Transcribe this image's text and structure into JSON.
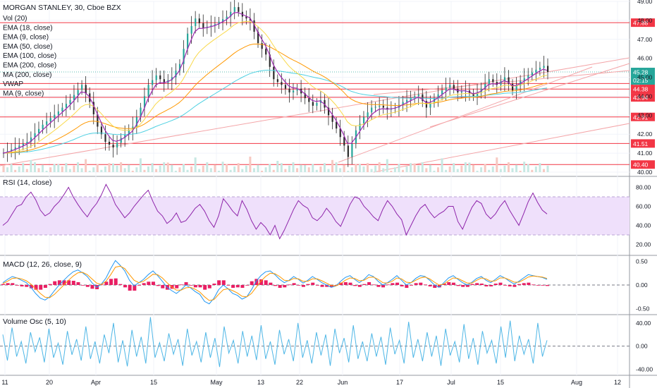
{
  "chart_data": {
    "type": "candlestick",
    "symbol_title": "MORGAN STANLEY, 30, Cboe BZX",
    "price_pane": {
      "indicators": [
        "Vol (20)",
        "EMA (18, close)",
        "EMA (9, close)",
        "EMA (50, close)",
        "EMA (100, close)",
        "EMA (200, close)",
        "MA (200, close)",
        "VWAP",
        "MA (9, close)"
      ],
      "ylim": [
        40,
        49
      ],
      "ticks": [
        "40.00",
        "41.00",
        "42.00",
        "43.00",
        "44.00",
        "45.00",
        "46.00",
        "47.00",
        "48.00",
        "49.00"
      ],
      "price_close_path": [
        [
          0,
          41.0
        ],
        [
          6,
          41.6
        ],
        [
          10,
          42.5
        ],
        [
          14,
          43.2
        ],
        [
          17,
          43.8
        ],
        [
          20,
          44.6
        ],
        [
          22,
          43.7
        ],
        [
          24,
          42.4
        ],
        [
          26,
          41.6
        ],
        [
          28,
          41.3
        ],
        [
          30,
          41.8
        ],
        [
          33,
          42.4
        ],
        [
          35,
          43.4
        ],
        [
          37,
          44.6
        ],
        [
          39,
          45.1
        ],
        [
          41,
          44.7
        ],
        [
          43,
          45.0
        ],
        [
          45,
          45.7
        ],
        [
          47,
          47.3
        ],
        [
          49,
          48.1
        ],
        [
          51,
          47.6
        ],
        [
          54,
          47.8
        ],
        [
          57,
          48.2
        ],
        [
          59,
          48.7
        ],
        [
          61,
          48.2
        ],
        [
          63,
          48.0
        ],
        [
          65,
          46.8
        ],
        [
          67,
          46.2
        ],
        [
          69,
          44.9
        ],
        [
          71,
          44.6
        ],
        [
          73,
          44.2
        ],
        [
          75,
          44.4
        ],
        [
          77,
          43.9
        ],
        [
          79,
          43.5
        ],
        [
          81,
          43.8
        ],
        [
          83,
          43.0
        ],
        [
          85,
          42.3
        ],
        [
          87,
          41.4
        ],
        [
          88,
          40.8
        ],
        [
          90,
          42.2
        ],
        [
          92,
          42.9
        ],
        [
          94,
          43.4
        ],
        [
          96,
          43.5
        ],
        [
          98,
          43.3
        ],
        [
          100,
          43.4
        ],
        [
          102,
          43.7
        ],
        [
          104,
          43.9
        ],
        [
          106,
          44.1
        ],
        [
          108,
          43.4
        ],
        [
          110,
          43.9
        ],
        [
          112,
          44.3
        ],
        [
          114,
          44.6
        ],
        [
          116,
          44.2
        ],
        [
          118,
          44.3
        ],
        [
          120,
          44.0
        ],
        [
          122,
          44.4
        ],
        [
          124,
          44.9
        ],
        [
          126,
          44.6
        ],
        [
          128,
          45.0
        ],
        [
          130,
          44.3
        ],
        [
          132,
          44.8
        ],
        [
          134,
          45.1
        ],
        [
          136,
          45.4
        ],
        [
          138,
          45.6
        ],
        [
          139,
          45.28
        ]
      ],
      "horizontal_levels": [
        {
          "label": "47.88",
          "value": 47.88
        },
        {
          "label": "44.67",
          "value": 44.67
        },
        {
          "label": "44.38",
          "value": 44.38
        },
        {
          "label": "43.94",
          "value": 43.94
        },
        {
          "label": "42.91",
          "value": 42.91
        },
        {
          "label": "41.51",
          "value": 41.51
        },
        {
          "label": "40.40",
          "value": 40.4
        }
      ],
      "last_price": {
        "label": "45.28",
        "countdown": "02:15",
        "value": 45.28
      }
    },
    "rsi_pane": {
      "title": "RSI (14, close)",
      "ylim": [
        10,
        90
      ],
      "ticks": [
        "80.00",
        "60.00",
        "40.00",
        "20.00"
      ],
      "band": [
        30,
        70
      ],
      "values": [
        40,
        44,
        52,
        60,
        62,
        70,
        75,
        67,
        56,
        50,
        53,
        60,
        65,
        72,
        80,
        70,
        62,
        55,
        49,
        57,
        63,
        72,
        83,
        74,
        62,
        55,
        48,
        53,
        60,
        66,
        72,
        77,
        65,
        55,
        50,
        42,
        46,
        53,
        43,
        45,
        51,
        58,
        62,
        55,
        45,
        38,
        50,
        68,
        62,
        55,
        50,
        66,
        57,
        45,
        36,
        43,
        38,
        30,
        40,
        26,
        35,
        46,
        57,
        66,
        61,
        58,
        48,
        45,
        50,
        58,
        52,
        44,
        39,
        50,
        62,
        70,
        68,
        60,
        55,
        49,
        45,
        57,
        66,
        60,
        52,
        46,
        30,
        40,
        50,
        58,
        62,
        54,
        48,
        52,
        55,
        60,
        60,
        44,
        36,
        48,
        59,
        66,
        63,
        52,
        47,
        52,
        60,
        66,
        56,
        48,
        40,
        52,
        65,
        74,
        64,
        56,
        52
      ]
    },
    "macd_pane": {
      "title": "MACD (12, 26, close, 9)",
      "ylim": [
        -0.6,
        0.6
      ],
      "ticks": [
        "0.50",
        "0.00",
        "-0.50"
      ],
      "macd": [
        0.05,
        0.12,
        0.18,
        0.15,
        0.1,
        0.05,
        -0.05,
        -0.18,
        -0.28,
        -0.32,
        -0.25,
        -0.12,
        0.0,
        0.1,
        0.2,
        0.28,
        0.32,
        0.26,
        0.18,
        0.05,
        -0.05,
        0.02,
        0.15,
        0.35,
        0.52,
        0.42,
        0.3,
        0.1,
        -0.02,
        0.05,
        0.12,
        0.22,
        0.3,
        0.2,
        0.08,
        -0.05,
        -0.12,
        -0.18,
        -0.1,
        0.0,
        -0.06,
        -0.14,
        -0.2,
        -0.35,
        -0.4,
        -0.28,
        -0.1,
        0.0,
        -0.08,
        -0.18,
        -0.22,
        -0.3,
        -0.25,
        -0.1,
        0.08,
        0.2,
        0.28,
        0.3,
        0.22,
        0.12,
        0.05,
        0.1,
        0.18,
        0.12,
        0.04,
        0.1,
        0.18,
        0.12,
        0.05,
        0.0,
        -0.05,
        -0.02,
        0.08,
        0.16,
        0.2,
        0.12,
        0.05,
        0.12,
        0.22,
        0.18,
        0.08,
        0.0,
        0.05,
        0.12,
        0.2,
        0.1,
        0.0,
        0.05,
        0.14,
        0.2,
        0.18,
        0.1,
        0.0,
        -0.05,
        0.05,
        0.15,
        0.2,
        0.12,
        0.05,
        0.0,
        0.06,
        0.14,
        0.18,
        0.1,
        0.05,
        0.12,
        0.2,
        0.15,
        0.08,
        0.02,
        0.08,
        0.15,
        0.22,
        0.2,
        0.18,
        0.16,
        0.12
      ],
      "signal": [
        0.03,
        0.08,
        0.14,
        0.15,
        0.13,
        0.09,
        0.02,
        -0.08,
        -0.18,
        -0.26,
        -0.27,
        -0.2,
        -0.1,
        0.0,
        0.1,
        0.19,
        0.26,
        0.27,
        0.22,
        0.13,
        0.04,
        0.01,
        0.08,
        0.22,
        0.38,
        0.4,
        0.35,
        0.22,
        0.1,
        0.05,
        0.08,
        0.15,
        0.23,
        0.22,
        0.15,
        0.05,
        -0.04,
        -0.11,
        -0.11,
        -0.06,
        -0.05,
        -0.09,
        -0.15,
        -0.25,
        -0.33,
        -0.31,
        -0.2,
        -0.1,
        -0.08,
        -0.12,
        -0.17,
        -0.24,
        -0.25,
        -0.18,
        -0.05,
        0.08,
        0.18,
        0.25,
        0.24,
        0.18,
        0.1,
        0.09,
        0.14,
        0.13,
        0.08,
        0.08,
        0.13,
        0.13,
        0.09,
        0.04,
        -0.01,
        -0.02,
        0.03,
        0.1,
        0.15,
        0.14,
        0.09,
        0.1,
        0.16,
        0.17,
        0.12,
        0.05,
        0.04,
        0.08,
        0.15,
        0.13,
        0.06,
        0.05,
        0.1,
        0.15,
        0.17,
        0.13,
        0.06,
        0.0,
        0.02,
        0.09,
        0.15,
        0.14,
        0.09,
        0.04,
        0.04,
        0.1,
        0.15,
        0.13,
        0.08,
        0.09,
        0.15,
        0.15,
        0.11,
        0.06,
        0.06,
        0.11,
        0.17,
        0.19,
        0.18,
        0.17,
        0.14
      ]
    },
    "vol_osc_pane": {
      "title": "Volume Osc (5, 10)",
      "ylim": [
        -48,
        52
      ],
      "ticks": [
        "40.00",
        "0.00",
        "-40.00"
      ],
      "values": [
        20,
        -25,
        32,
        -18,
        8,
        -30,
        24,
        -10,
        15,
        -28,
        30,
        -20,
        5,
        -32,
        26,
        -15,
        12,
        -25,
        34,
        -22,
        8,
        -30,
        20,
        -12,
        40,
        -28,
        10,
        -35,
        28,
        -18,
        16,
        -30,
        50,
        -20,
        6,
        -26,
        22,
        -14,
        12,
        -34,
        30,
        -16,
        8,
        -28,
        24,
        -20,
        14,
        -36,
        34,
        -12,
        10,
        -30,
        26,
        -18,
        18,
        -24,
        36,
        -22,
        8,
        -32,
        28,
        -14,
        12,
        -26,
        40,
        -20,
        10,
        -30,
        24,
        -16,
        20,
        -34,
        30,
        -12,
        14,
        -28,
        36,
        -22,
        8,
        -26,
        22,
        -18,
        16,
        -32,
        32,
        -14,
        10,
        -30,
        42,
        -20,
        12,
        -26,
        24,
        -18,
        18,
        -34,
        30,
        -16,
        8,
        -28,
        38,
        -22,
        14,
        -32,
        26,
        -12,
        10,
        -30,
        34,
        -20,
        44,
        -26,
        18,
        -14,
        12,
        -30,
        40,
        -18,
        10
      ]
    },
    "x_ticks": [
      "11",
      "20",
      "Apr",
      "15",
      "May",
      "13",
      "22",
      "Jun",
      "17",
      "Jul",
      "15",
      "Aug",
      "12"
    ],
    "colors": {
      "up_candle": "#26a69a",
      "candle_body": "#2b2b2b",
      "ema_fast": "#9c27b0",
      "ema_mid": "#f9d94a",
      "ema_slow": "#ff9800",
      "ema_long": "#4dd0e1",
      "level_line": "#f23645",
      "trend_line": "#f4a5a8",
      "rsi_line": "#8e24aa",
      "rsi_band": "#efe0fb",
      "macd_line": "#2196f3",
      "signal_line": "#ff9800",
      "histogram": "#e91e63",
      "vol_osc_line": "#4db6e6",
      "last_price_tag": "#26a69a"
    }
  }
}
